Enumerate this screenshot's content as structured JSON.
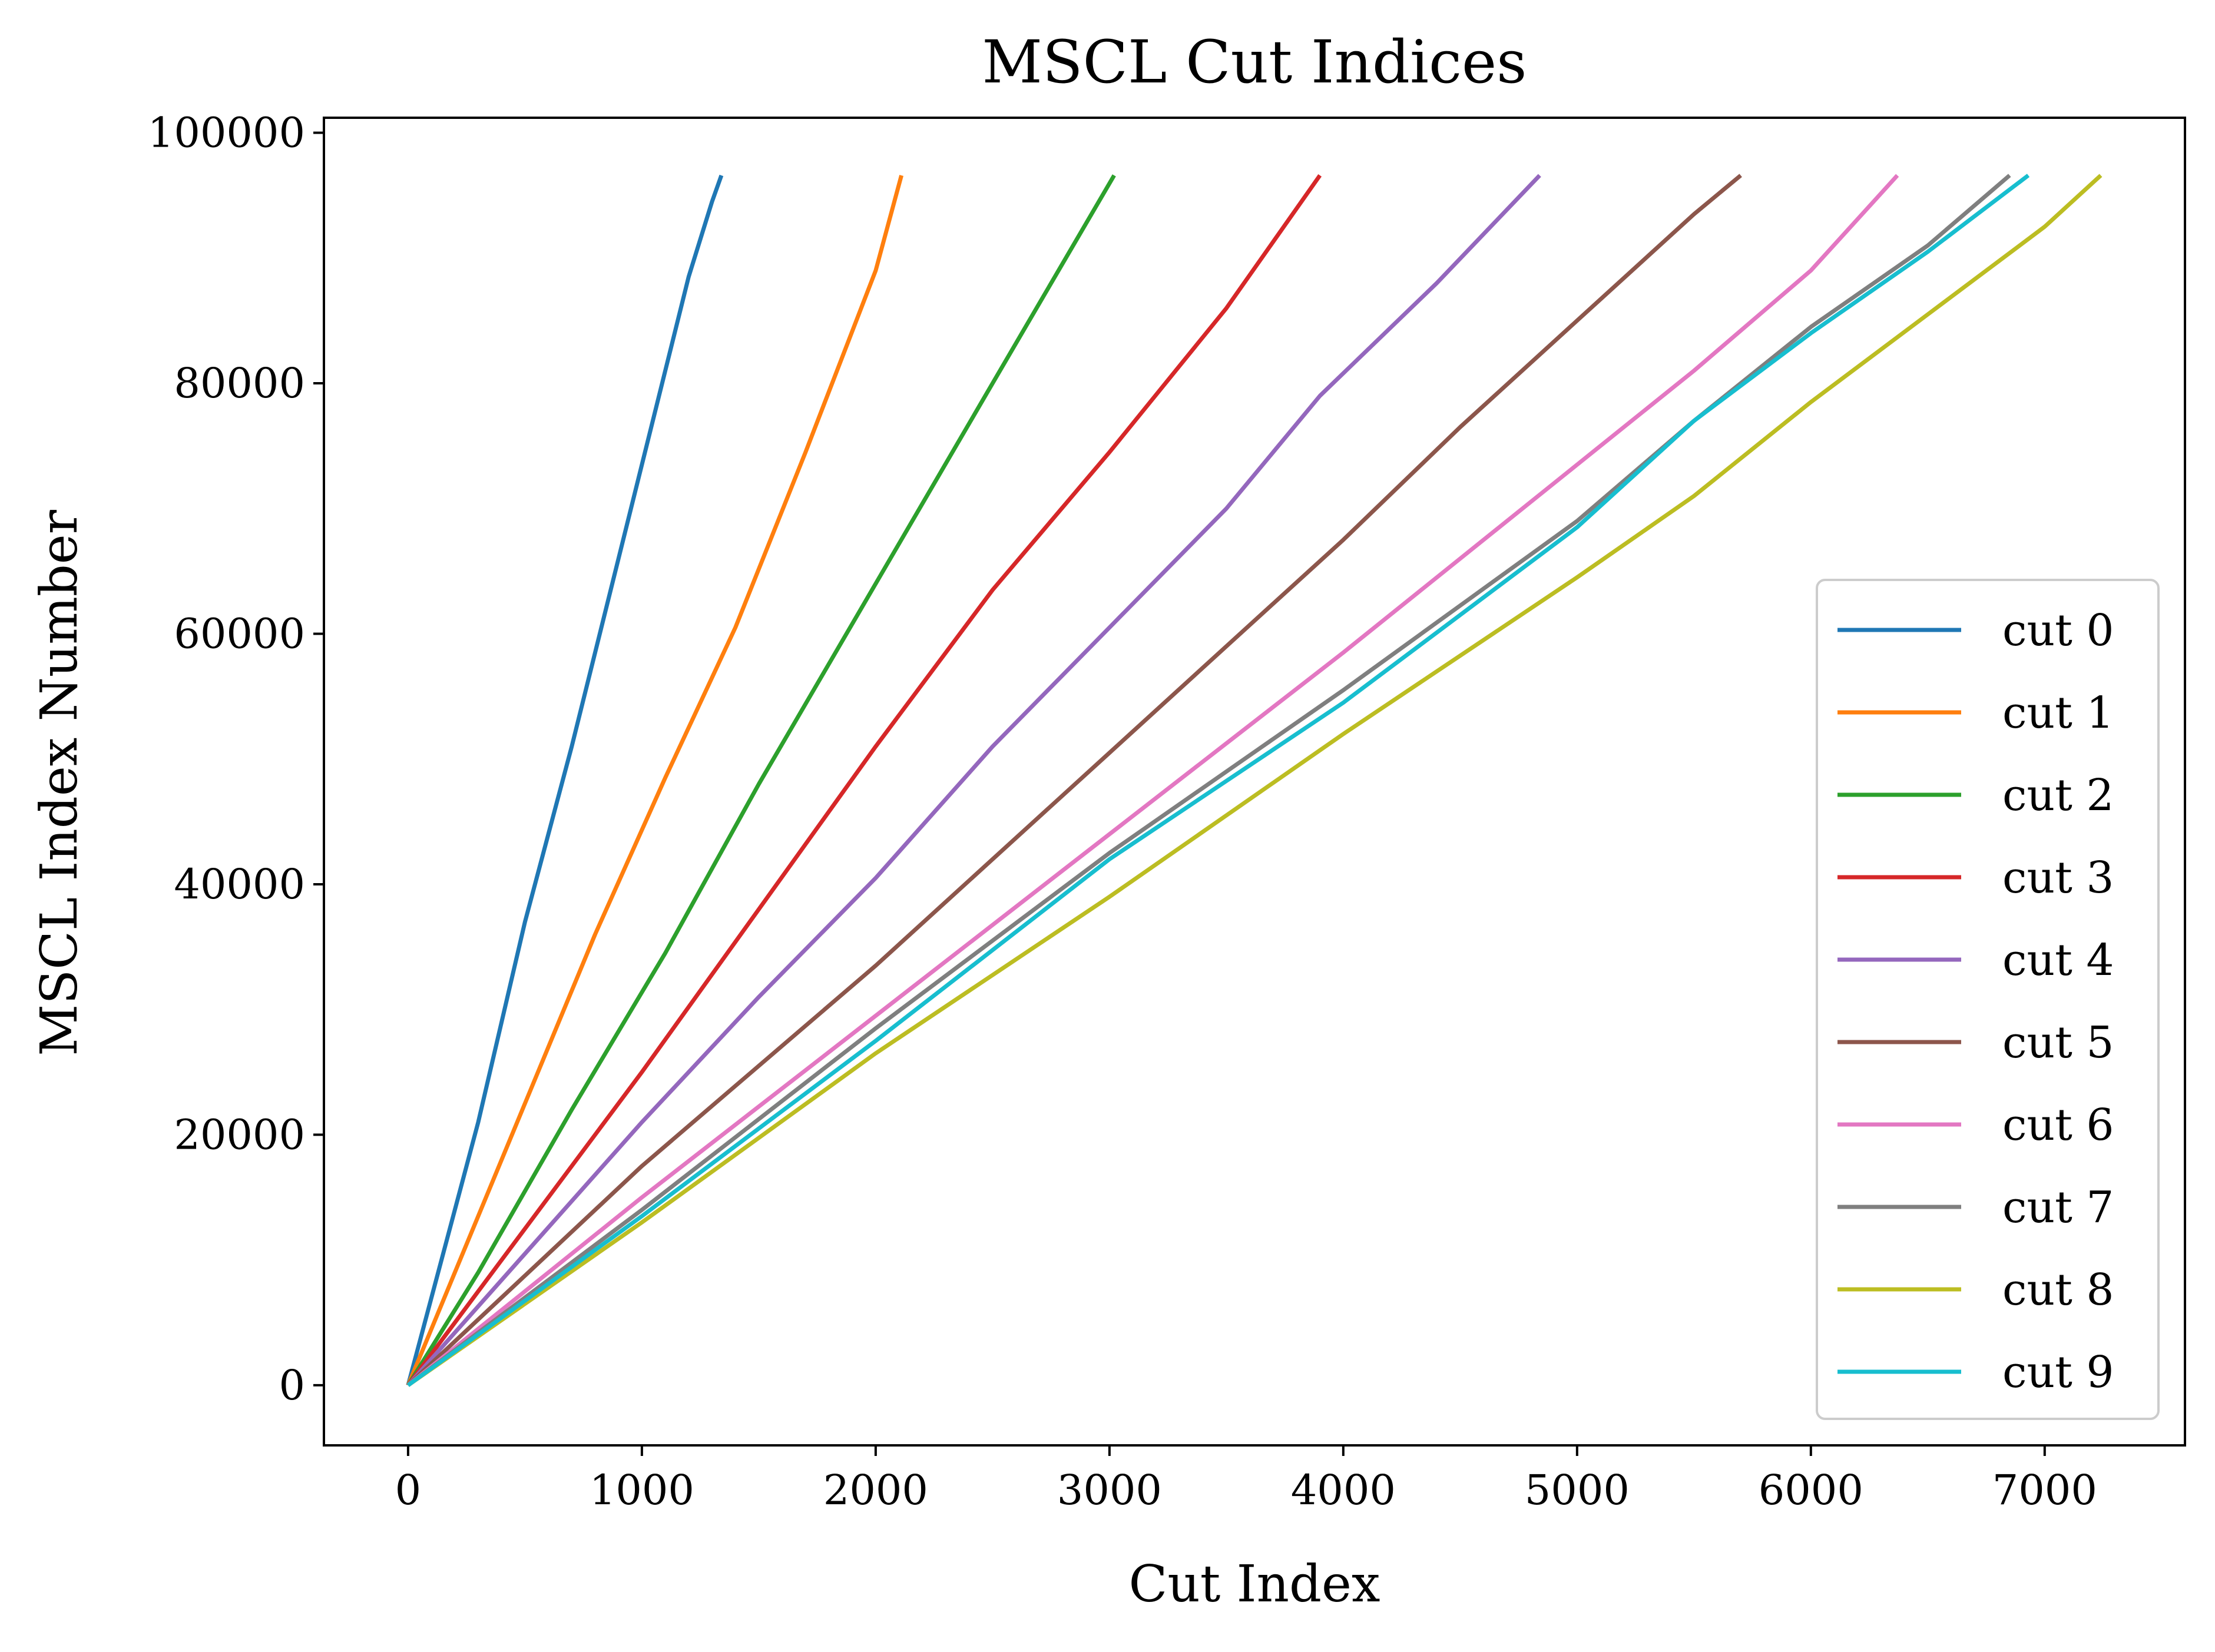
{
  "chart_data": {
    "type": "line",
    "title": "MSCL Cut Indices",
    "xlabel": "Cut Index",
    "ylabel": "MSCL Index Number",
    "xlim": [
      -360,
      7600
    ],
    "ylim": [
      -4800,
      101200
    ],
    "xticks": [
      0,
      1000,
      2000,
      3000,
      4000,
      5000,
      6000,
      7000
    ],
    "yticks": [
      0,
      20000,
      40000,
      60000,
      80000,
      100000
    ],
    "grid": false,
    "legend_position": "lower right",
    "series": [
      {
        "name": "cut 0",
        "color": "#1f77b4",
        "x": [
          0,
          100,
          300,
          500,
          700,
          900,
          1100,
          1200,
          1300,
          1340
        ],
        "y": [
          0,
          7000,
          21000,
          37000,
          51000,
          66000,
          81000,
          88500,
          94500,
          96600
        ]
      },
      {
        "name": "cut 1",
        "color": "#ff7f0e",
        "x": [
          0,
          200,
          500,
          800,
          1100,
          1400,
          1700,
          2000,
          2110
        ],
        "y": [
          0,
          9000,
          22500,
          36000,
          48500,
          60500,
          74500,
          89000,
          96600
        ]
      },
      {
        "name": "cut 2",
        "color": "#2ca02c",
        "x": [
          0,
          300,
          700,
          1100,
          1500,
          2000,
          2500,
          3020
        ],
        "y": [
          0,
          9000,
          22000,
          34500,
          48000,
          64000,
          80000,
          96600
        ]
      },
      {
        "name": "cut 3",
        "color": "#d62728",
        "x": [
          0,
          500,
          1000,
          1500,
          2000,
          2500,
          3000,
          3500,
          3900
        ],
        "y": [
          0,
          12500,
          25000,
          38000,
          51000,
          63500,
          74500,
          86000,
          96600
        ]
      },
      {
        "name": "cut 4",
        "color": "#9467bd",
        "x": [
          0,
          500,
          1000,
          1500,
          2000,
          2500,
          3000,
          3500,
          3900,
          4400,
          4840
        ],
        "y": [
          0,
          10500,
          21000,
          31000,
          40500,
          51000,
          60500,
          70000,
          79000,
          88000,
          96600
        ]
      },
      {
        "name": "cut 5",
        "color": "#8c564b",
        "x": [
          0,
          1000,
          2000,
          3000,
          3500,
          4000,
          4500,
          5000,
          5500,
          5700
        ],
        "y": [
          0,
          17500,
          33500,
          50500,
          59000,
          67500,
          76500,
          85000,
          93500,
          96600
        ]
      },
      {
        "name": "cut 6",
        "color": "#e377c2",
        "x": [
          0,
          1000,
          2000,
          3000,
          4000,
          5000,
          5500,
          6000,
          6370
        ],
        "y": [
          0,
          15000,
          29500,
          44000,
          58500,
          73500,
          81000,
          89000,
          96600
        ]
      },
      {
        "name": "cut 7",
        "color": "#7f7f7f",
        "x": [
          0,
          1000,
          2000,
          3000,
          4000,
          5000,
          5500,
          6000,
          6500,
          6850
        ],
        "y": [
          0,
          14000,
          28500,
          42500,
          55500,
          69000,
          77000,
          84500,
          91000,
          96600
        ]
      },
      {
        "name": "cut 8",
        "color": "#bcbd22",
        "x": [
          0,
          1000,
          2000,
          3000,
          4000,
          5000,
          5500,
          6000,
          6500,
          7000,
          7240
        ],
        "y": [
          0,
          13000,
          26500,
          39000,
          52000,
          64500,
          71000,
          78500,
          85500,
          92500,
          96600
        ]
      },
      {
        "name": "cut 9",
        "color": "#17becf",
        "x": [
          0,
          1000,
          2000,
          3000,
          4000,
          5000,
          5500,
          6000,
          6500,
          6930
        ],
        "y": [
          0,
          13500,
          27500,
          42000,
          54500,
          68500,
          77000,
          84000,
          90500,
          96600
        ]
      }
    ]
  }
}
